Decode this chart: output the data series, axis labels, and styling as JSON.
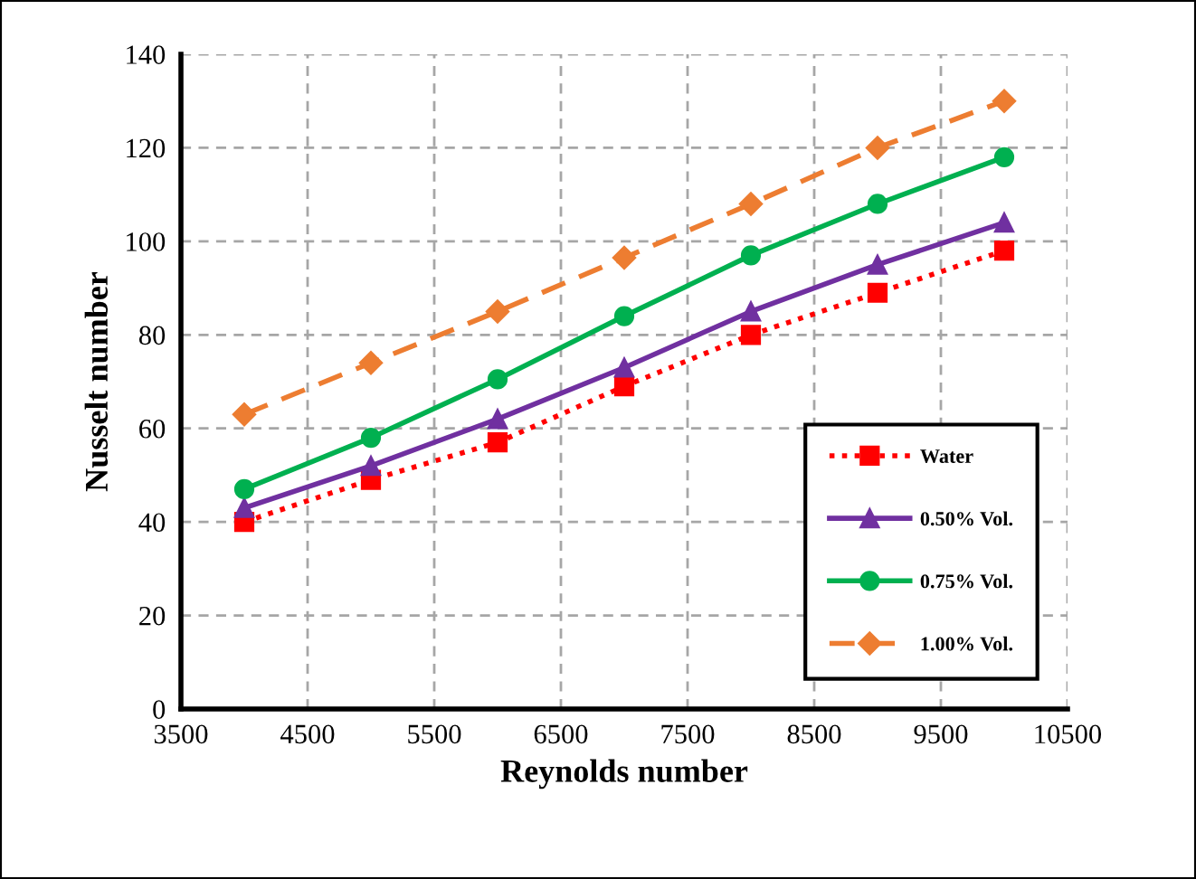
{
  "chart_data": {
    "type": "line",
    "xlabel": "Reynolds number",
    "ylabel": "Nusselt number",
    "x": [
      4000,
      5000,
      6000,
      7000,
      8000,
      9000,
      10000
    ],
    "series": [
      {
        "name": "Water",
        "color": "#ff0000",
        "values": [
          40,
          49,
          57,
          69,
          80,
          89,
          98
        ],
        "marker": "square",
        "line_style": "dotted"
      },
      {
        "name": "0.50% Vol.",
        "color": "#7030a0",
        "values": [
          43,
          52,
          62,
          73,
          85,
          95,
          104
        ],
        "marker": "triangle",
        "line_style": "solid"
      },
      {
        "name": "0.75% Vol.",
        "color": "#00b050",
        "values": [
          47,
          58,
          70.5,
          84,
          97,
          108,
          118
        ],
        "marker": "circle",
        "line_style": "solid"
      },
      {
        "name": "1.00% Vol.",
        "color": "#ed7d31",
        "values": [
          63,
          74,
          85,
          96.5,
          108,
          120,
          130
        ],
        "marker": "diamond",
        "line_style": "dashed"
      }
    ],
    "xlim": [
      3500,
      10500
    ],
    "xticks": [
      3500,
      4500,
      5500,
      6500,
      7500,
      8500,
      9500,
      10500
    ],
    "ylim": [
      0,
      140
    ],
    "yticks": [
      0,
      20,
      40,
      60,
      80,
      100,
      120,
      140
    ],
    "grid": true,
    "legend": "bottom right"
  }
}
